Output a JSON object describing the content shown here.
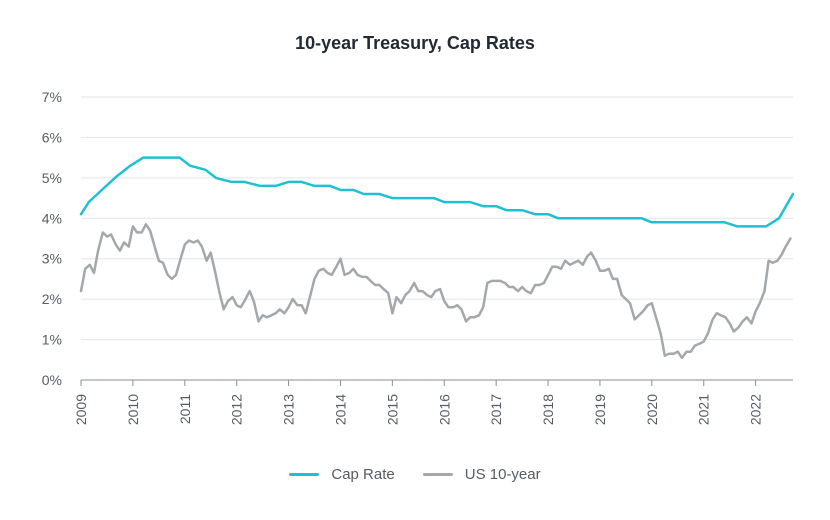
{
  "chart_data": {
    "type": "line",
    "title": "10-year Treasury, Cap Rates",
    "xlabel": "",
    "ylabel": "",
    "xlim": [
      2009,
      2022.72
    ],
    "ylim": [
      0,
      7
    ],
    "x_ticks": [
      "2009",
      "2010",
      "2011",
      "2012",
      "2013",
      "2014",
      "2015",
      "2016",
      "2017",
      "2018",
      "2019",
      "2020",
      "2021",
      "2022"
    ],
    "y_ticks": [
      "0%",
      "1%",
      "2%",
      "3%",
      "4%",
      "5%",
      "6%",
      "7%"
    ],
    "grid": true,
    "legend_position": "bottom",
    "series": [
      {
        "name": "Cap Rate",
        "color": "#1ec0d4",
        "points": [
          [
            2009.0,
            4.1
          ],
          [
            2009.15,
            4.4
          ],
          [
            2009.4,
            4.7
          ],
          [
            2009.7,
            5.05
          ],
          [
            2009.95,
            5.3
          ],
          [
            2010.2,
            5.5
          ],
          [
            2010.5,
            5.5
          ],
          [
            2010.9,
            5.5
          ],
          [
            2011.1,
            5.3
          ],
          [
            2011.4,
            5.2
          ],
          [
            2011.6,
            5.0
          ],
          [
            2011.9,
            4.9
          ],
          [
            2012.15,
            4.9
          ],
          [
            2012.45,
            4.8
          ],
          [
            2012.75,
            4.8
          ],
          [
            2013.0,
            4.9
          ],
          [
            2013.25,
            4.9
          ],
          [
            2013.5,
            4.8
          ],
          [
            2013.8,
            4.8
          ],
          [
            2014.0,
            4.7
          ],
          [
            2014.25,
            4.7
          ],
          [
            2014.45,
            4.6
          ],
          [
            2014.75,
            4.6
          ],
          [
            2015.0,
            4.5
          ],
          [
            2015.8,
            4.5
          ],
          [
            2016.0,
            4.4
          ],
          [
            2016.5,
            4.4
          ],
          [
            2016.75,
            4.3
          ],
          [
            2017.0,
            4.3
          ],
          [
            2017.2,
            4.2
          ],
          [
            2017.5,
            4.2
          ],
          [
            2017.75,
            4.1
          ],
          [
            2018.0,
            4.1
          ],
          [
            2018.2,
            4.0
          ],
          [
            2019.8,
            4.0
          ],
          [
            2020.0,
            3.9
          ],
          [
            2021.4,
            3.9
          ],
          [
            2021.65,
            3.8
          ],
          [
            2022.2,
            3.8
          ],
          [
            2022.45,
            4.0
          ],
          [
            2022.72,
            4.6
          ]
        ]
      },
      {
        "name": "US 10-year",
        "color": "#a3a8ac",
        "points": [
          [
            2009.0,
            2.2
          ],
          [
            2009.08,
            2.75
          ],
          [
            2009.17,
            2.85
          ],
          [
            2009.25,
            2.65
          ],
          [
            2009.33,
            3.2
          ],
          [
            2009.42,
            3.65
          ],
          [
            2009.5,
            3.55
          ],
          [
            2009.58,
            3.6
          ],
          [
            2009.67,
            3.35
          ],
          [
            2009.75,
            3.2
          ],
          [
            2009.83,
            3.4
          ],
          [
            2009.92,
            3.3
          ],
          [
            2010.0,
            3.8
          ],
          [
            2010.08,
            3.65
          ],
          [
            2010.17,
            3.65
          ],
          [
            2010.25,
            3.85
          ],
          [
            2010.33,
            3.7
          ],
          [
            2010.42,
            3.3
          ],
          [
            2010.5,
            2.95
          ],
          [
            2010.58,
            2.9
          ],
          [
            2010.67,
            2.6
          ],
          [
            2010.75,
            2.5
          ],
          [
            2010.83,
            2.6
          ],
          [
            2010.92,
            3.0
          ],
          [
            2011.0,
            3.35
          ],
          [
            2011.08,
            3.45
          ],
          [
            2011.17,
            3.4
          ],
          [
            2011.25,
            3.45
          ],
          [
            2011.33,
            3.3
          ],
          [
            2011.42,
            2.95
          ],
          [
            2011.5,
            3.15
          ],
          [
            2011.58,
            2.7
          ],
          [
            2011.67,
            2.15
          ],
          [
            2011.75,
            1.75
          ],
          [
            2011.83,
            1.95
          ],
          [
            2011.92,
            2.05
          ],
          [
            2012.0,
            1.85
          ],
          [
            2012.08,
            1.8
          ],
          [
            2012.17,
            2.0
          ],
          [
            2012.25,
            2.2
          ],
          [
            2012.33,
            1.95
          ],
          [
            2012.42,
            1.45
          ],
          [
            2012.5,
            1.6
          ],
          [
            2012.58,
            1.55
          ],
          [
            2012.67,
            1.6
          ],
          [
            2012.75,
            1.65
          ],
          [
            2012.83,
            1.75
          ],
          [
            2012.92,
            1.65
          ],
          [
            2013.0,
            1.8
          ],
          [
            2013.08,
            2.0
          ],
          [
            2013.17,
            1.85
          ],
          [
            2013.25,
            1.85
          ],
          [
            2013.33,
            1.65
          ],
          [
            2013.42,
            2.1
          ],
          [
            2013.5,
            2.5
          ],
          [
            2013.58,
            2.7
          ],
          [
            2013.67,
            2.75
          ],
          [
            2013.75,
            2.65
          ],
          [
            2013.83,
            2.6
          ],
          [
            2013.92,
            2.8
          ],
          [
            2014.0,
            3.0
          ],
          [
            2014.08,
            2.6
          ],
          [
            2014.17,
            2.65
          ],
          [
            2014.25,
            2.75
          ],
          [
            2014.33,
            2.6
          ],
          [
            2014.42,
            2.55
          ],
          [
            2014.5,
            2.55
          ],
          [
            2014.58,
            2.45
          ],
          [
            2014.67,
            2.35
          ],
          [
            2014.75,
            2.35
          ],
          [
            2014.83,
            2.25
          ],
          [
            2014.92,
            2.15
          ],
          [
            2015.0,
            1.65
          ],
          [
            2015.08,
            2.05
          ],
          [
            2015.17,
            1.9
          ],
          [
            2015.25,
            2.1
          ],
          [
            2015.33,
            2.2
          ],
          [
            2015.42,
            2.4
          ],
          [
            2015.5,
            2.2
          ],
          [
            2015.58,
            2.2
          ],
          [
            2015.67,
            2.1
          ],
          [
            2015.75,
            2.05
          ],
          [
            2015.83,
            2.2
          ],
          [
            2015.92,
            2.25
          ],
          [
            2016.0,
            1.95
          ],
          [
            2016.08,
            1.8
          ],
          [
            2016.17,
            1.8
          ],
          [
            2016.25,
            1.85
          ],
          [
            2016.33,
            1.75
          ],
          [
            2016.42,
            1.45
          ],
          [
            2016.5,
            1.55
          ],
          [
            2016.58,
            1.55
          ],
          [
            2016.67,
            1.6
          ],
          [
            2016.75,
            1.8
          ],
          [
            2016.83,
            2.4
          ],
          [
            2016.92,
            2.45
          ],
          [
            2017.0,
            2.45
          ],
          [
            2017.08,
            2.45
          ],
          [
            2017.17,
            2.4
          ],
          [
            2017.25,
            2.3
          ],
          [
            2017.33,
            2.3
          ],
          [
            2017.42,
            2.2
          ],
          [
            2017.5,
            2.3
          ],
          [
            2017.58,
            2.2
          ],
          [
            2017.67,
            2.15
          ],
          [
            2017.75,
            2.35
          ],
          [
            2017.83,
            2.35
          ],
          [
            2017.92,
            2.4
          ],
          [
            2018.0,
            2.6
          ],
          [
            2018.08,
            2.8
          ],
          [
            2018.17,
            2.8
          ],
          [
            2018.25,
            2.75
          ],
          [
            2018.33,
            2.95
          ],
          [
            2018.42,
            2.85
          ],
          [
            2018.5,
            2.9
          ],
          [
            2018.58,
            2.95
          ],
          [
            2018.67,
            2.85
          ],
          [
            2018.75,
            3.05
          ],
          [
            2018.83,
            3.15
          ],
          [
            2018.92,
            2.95
          ],
          [
            2019.0,
            2.7
          ],
          [
            2019.08,
            2.7
          ],
          [
            2019.17,
            2.75
          ],
          [
            2019.25,
            2.5
          ],
          [
            2019.33,
            2.5
          ],
          [
            2019.42,
            2.1
          ],
          [
            2019.5,
            2.0
          ],
          [
            2019.58,
            1.9
          ],
          [
            2019.67,
            1.5
          ],
          [
            2019.75,
            1.6
          ],
          [
            2019.83,
            1.7
          ],
          [
            2019.92,
            1.85
          ],
          [
            2020.0,
            1.9
          ],
          [
            2020.08,
            1.55
          ],
          [
            2020.17,
            1.15
          ],
          [
            2020.25,
            0.6
          ],
          [
            2020.33,
            0.65
          ],
          [
            2020.42,
            0.65
          ],
          [
            2020.5,
            0.7
          ],
          [
            2020.58,
            0.55
          ],
          [
            2020.67,
            0.7
          ],
          [
            2020.75,
            0.7
          ],
          [
            2020.83,
            0.85
          ],
          [
            2020.92,
            0.9
          ],
          [
            2021.0,
            0.95
          ],
          [
            2021.08,
            1.15
          ],
          [
            2021.17,
            1.5
          ],
          [
            2021.25,
            1.65
          ],
          [
            2021.33,
            1.6
          ],
          [
            2021.42,
            1.55
          ],
          [
            2021.5,
            1.4
          ],
          [
            2021.58,
            1.2
          ],
          [
            2021.67,
            1.3
          ],
          [
            2021.75,
            1.45
          ],
          [
            2021.83,
            1.55
          ],
          [
            2021.92,
            1.4
          ],
          [
            2022.0,
            1.7
          ],
          [
            2022.08,
            1.9
          ],
          [
            2022.17,
            2.2
          ],
          [
            2022.25,
            2.95
          ],
          [
            2022.33,
            2.9
          ],
          [
            2022.42,
            2.95
          ],
          [
            2022.5,
            3.1
          ],
          [
            2022.58,
            3.3
          ],
          [
            2022.67,
            3.5
          ]
        ]
      }
    ]
  }
}
